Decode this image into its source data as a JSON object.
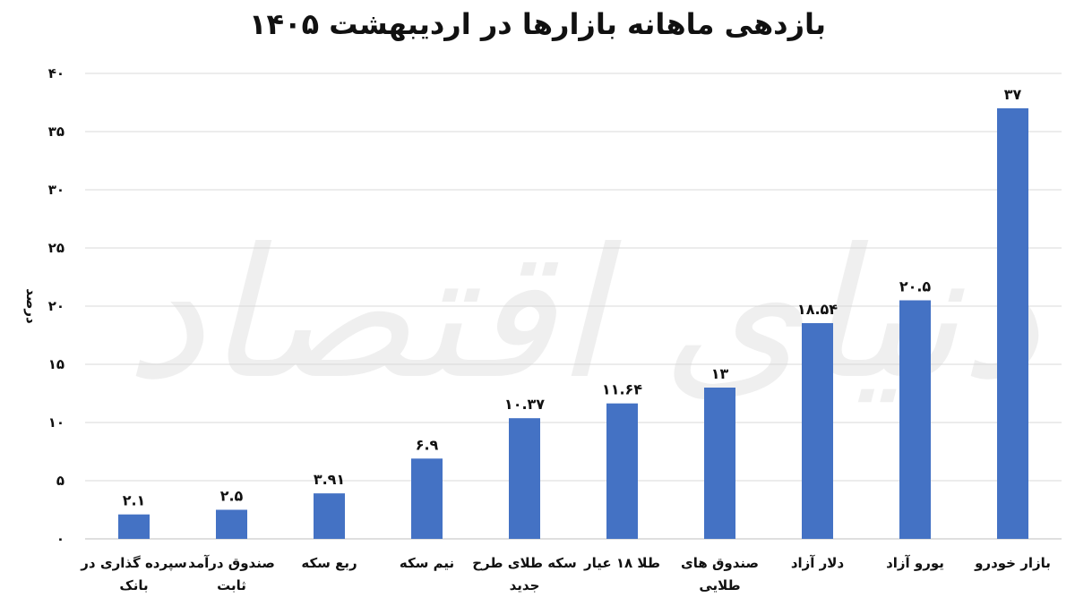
{
  "chart_data": {
    "type": "bar",
    "title": "بازدهی ماهانه بازارها در اردیبهشت ۱۴۰۵",
    "ylabel": "درصد",
    "xlabel": "",
    "ylim": [
      0,
      40
    ],
    "yticks": [
      0,
      5,
      10,
      15,
      20,
      25,
      30,
      35,
      40
    ],
    "ytick_labels": [
      "۰",
      "۵",
      "۱۰",
      "۱۵",
      "۲۰",
      "۲۵",
      "۳۰",
      "۳۵",
      "۴۰"
    ],
    "grid": true,
    "bar_color": "#4472C4",
    "categories": [
      [
        "سپرده گذاری در",
        "بانک"
      ],
      [
        "صندوق درآمد",
        "ثابت"
      ],
      [
        "ربع سکه"
      ],
      [
        "نیم سکه"
      ],
      [
        "سکه طلای طرح",
        "جدید"
      ],
      [
        "طلا ۱۸ عیار"
      ],
      [
        "صندوق های",
        "طلایی"
      ],
      [
        "دلار آزاد"
      ],
      [
        "یورو آزاد"
      ],
      [
        "بازار خودرو"
      ]
    ],
    "values": [
      2.1,
      2.5,
      3.91,
      6.9,
      10.37,
      11.64,
      13,
      18.54,
      20.5,
      37
    ],
    "value_labels": [
      "۲.۱",
      "۲.۵",
      "۳.۹۱",
      "۶.۹",
      "۱۰.۳۷",
      "۱۱.۶۴",
      "۱۳",
      "۱۸.۵۴",
      "۲۰.۵",
      "۳۷"
    ]
  },
  "watermark": "دنیای اقتصاد"
}
